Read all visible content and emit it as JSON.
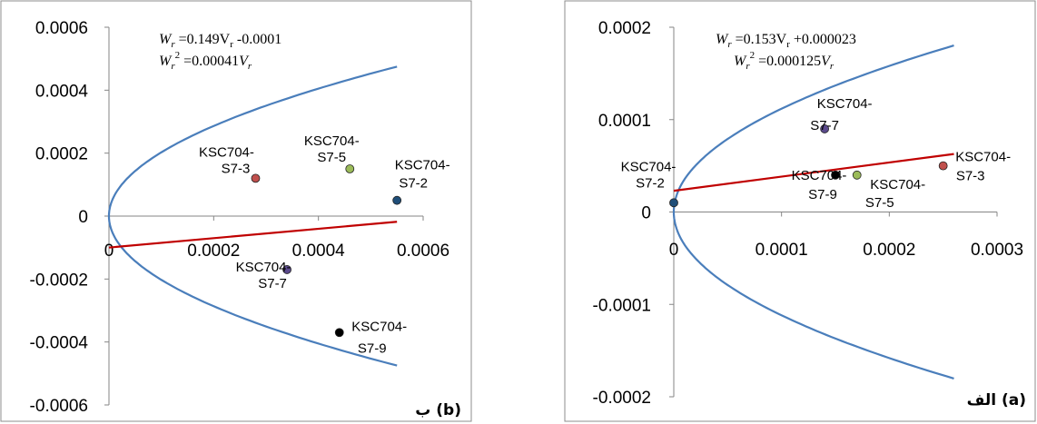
{
  "chart_data": [
    {
      "type": "scatter",
      "panel_tag": "ب (b)",
      "equations": {
        "line_prefix": "W",
        "line_sub": "r",
        "line_rest": " =0.149V",
        "line_rest_sub": "r",
        "line_tail": " -0.0001",
        "parab_prefix": "W",
        "parab_sub": "r",
        "parab_sup": "2",
        "parab_rest": " =0.00041",
        "parab_var": "V",
        "parab_var_sub": "r"
      },
      "xlim": [
        0,
        0.0006
      ],
      "ylim": [
        -0.0006,
        0.0006
      ],
      "x_ticks": [
        "0",
        "0.0002",
        "0.0004",
        "0.0006"
      ],
      "y_ticks": [
        "0.0006",
        "0.0004",
        "0.0002",
        "0",
        "-0.0002",
        "-0.0004",
        "-0.0006"
      ],
      "parabola_coef": 0.00041,
      "parabola_xmax": 0.00055,
      "line": {
        "slope": 0.149,
        "intercept": -0.0001,
        "x_end": 0.00055
      },
      "points": [
        {
          "x": 0.00028,
          "y": 0.00012,
          "label1": "KSC704-",
          "label2": "S7-3",
          "color": "#c0504d"
        },
        {
          "x": 0.00046,
          "y": 0.00015,
          "label1": "KSC704-",
          "label2": "S7-5",
          "color": "#9bbb59"
        },
        {
          "x": 0.00055,
          "y": 5e-05,
          "label1": "KSC704-",
          "label2": "S7-2",
          "color": "#1f4e79"
        },
        {
          "x": 0.00034,
          "y": -0.00017,
          "label1": "KSC704-",
          "label2": "S7-7",
          "color": "#5b4a8c"
        },
        {
          "x": 0.00044,
          "y": -0.00037,
          "label1": "KSC704-",
          "label2": "S7-9",
          "color": "#000000"
        }
      ]
    },
    {
      "type": "scatter",
      "panel_tag": "الف (a)",
      "equations": {
        "line_prefix": "W",
        "line_sub": "r",
        "line_rest": " =0.153V",
        "line_rest_sub": "r",
        "line_tail": " +0.000023",
        "parab_prefix": "W",
        "parab_sub": "r",
        "parab_sup": "2",
        "parab_rest": " =0.000125",
        "parab_var": "V",
        "parab_var_sub": "r"
      },
      "xlim": [
        0,
        0.0003
      ],
      "ylim": [
        -0.0002,
        0.0002
      ],
      "x_ticks": [
        "0",
        "0.0001",
        "0.0002",
        "0.0003"
      ],
      "y_ticks": [
        "0.0002",
        "0.0001",
        "0",
        "-0.0001",
        "-0.0002"
      ],
      "parabola_coef": 0.000125,
      "parabola_xmax": 0.00026,
      "line": {
        "slope": 0.153,
        "intercept": 2.3e-05,
        "x_end": 0.00026
      },
      "points": [
        {
          "x": 0.0,
          "y": 1e-05,
          "label1": "KSC704-",
          "label2": "S7-2",
          "color": "#1f4e79"
        },
        {
          "x": 0.00014,
          "y": 9e-05,
          "label1": "KSC704-",
          "label2": "S7-7",
          "color": "#5b4a8c"
        },
        {
          "x": 0.00015,
          "y": 4e-05,
          "label1": "KSC704-",
          "label2": "S7-9",
          "color": "#000000"
        },
        {
          "x": 0.00017,
          "y": 4e-05,
          "label1": "KSC704-",
          "label2": "S7-5",
          "color": "#9bbb59"
        },
        {
          "x": 0.00025,
          "y": 5e-05,
          "label1": "KSC704-",
          "label2": "S7-3",
          "color": "#c0504d"
        }
      ]
    }
  ],
  "colors": {
    "parabola": "#4a7ebb",
    "fit_line": "#c00000",
    "axis": "#868686"
  }
}
